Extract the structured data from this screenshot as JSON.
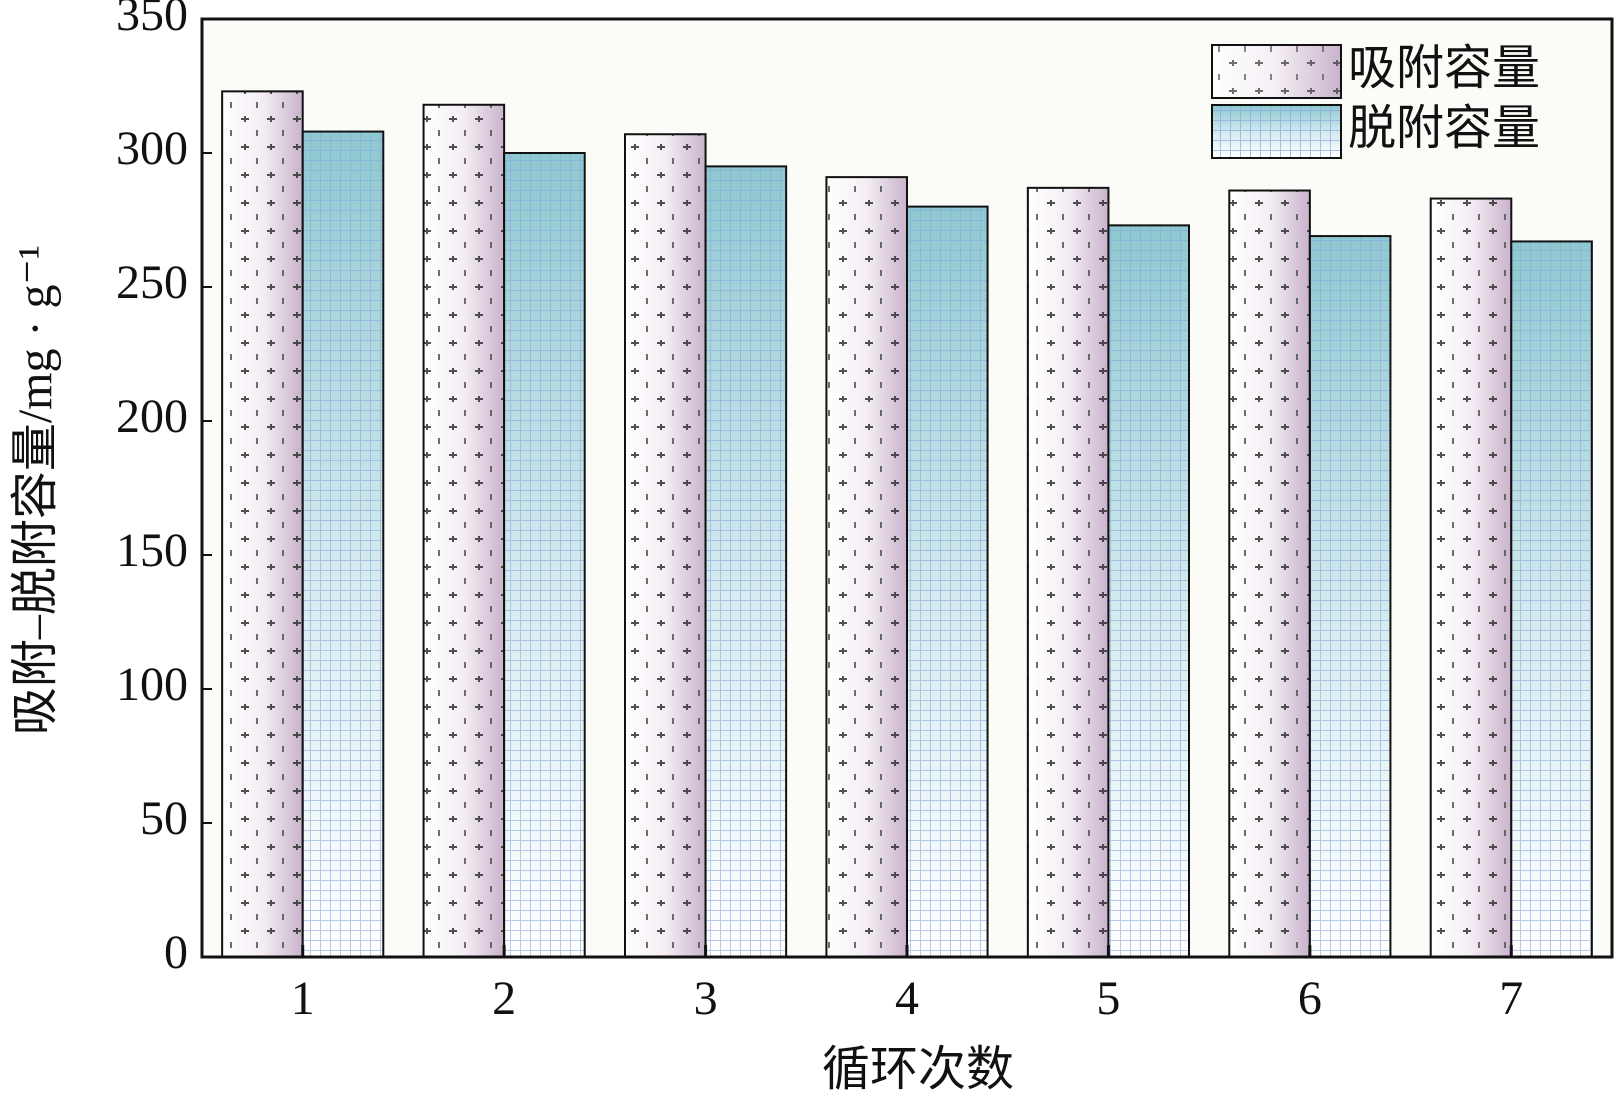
{
  "chart_data": {
    "type": "bar",
    "x_label": "循环次数",
    "y_label": "吸附–脱附容量/mg · g⁻¹",
    "categories": [
      "1",
      "2",
      "3",
      "4",
      "5",
      "6",
      "7"
    ],
    "series": [
      {
        "name": "吸附容量",
        "color": "#c9b3cc",
        "values": [
          323,
          318,
          307,
          291,
          287,
          286,
          283
        ]
      },
      {
        "name": "脱附容量",
        "color": "#8ec8d0",
        "values": [
          308,
          300,
          295,
          280,
          273,
          269,
          267
        ]
      }
    ],
    "ylim": [
      0,
      350
    ],
    "yticks": [
      0,
      50,
      100,
      150,
      200,
      250,
      300,
      350
    ],
    "legend": "upper right"
  }
}
